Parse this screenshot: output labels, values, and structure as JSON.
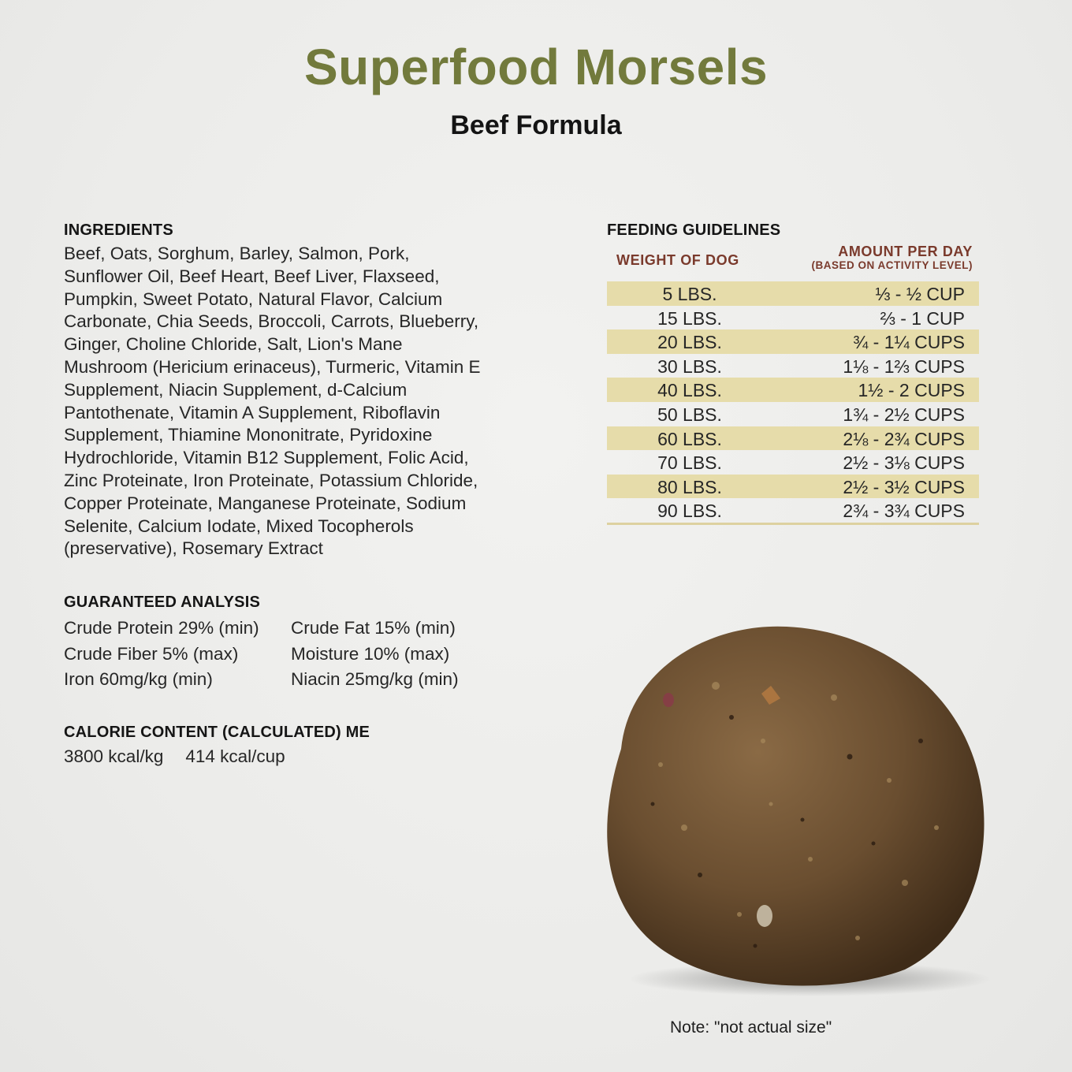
{
  "header": {
    "title": "Superfood Morsels",
    "subtitle": "Beef Formula"
  },
  "ingredients": {
    "heading": "INGREDIENTS",
    "lines": [
      "Beef, Oats, Sorghum, Barley, Salmon, Pork,",
      "Sunflower Oil, Beef Heart, Beef Liver, Flaxseed,",
      "Pumpkin, Sweet Potato, Natural Flavor, Calcium",
      "Carbonate, Chia Seeds, Broccoli, Carrots, Blueberry,",
      "Ginger, Choline Chloride, Salt, Lion's Mane",
      "Mushroom (Hericium erinaceus), Turmeric, Vitamin E",
      "Supplement, Niacin Supplement, d-Calcium",
      "Pantothenate, Vitamin A Supplement, Riboflavin",
      "Supplement, Thiamine Mononitrate, Pyridoxine",
      "Hydrochloride, Vitamin B12 Supplement, Folic Acid,",
      "Zinc Proteinate, Iron Proteinate, Potassium Chloride,",
      "Copper Proteinate, Manganese Proteinate, Sodium",
      "Selenite, Calcium Iodate, Mixed Tocopherols",
      "(preservative), Rosemary Extract"
    ]
  },
  "analysis": {
    "heading": "GUARANTEED ANALYSIS",
    "items": [
      "Crude Protein 29% (min)",
      "Crude Fat 15% (min)",
      "Crude Fiber 5% (max)",
      "Moisture 10% (max)",
      "Iron 60mg/kg (min)",
      "Niacin 25mg/kg (min)"
    ]
  },
  "calorie": {
    "heading": "CALORIE CONTENT (CALCULATED) ME",
    "per_kg": "3800 kcal/kg",
    "per_cup": "414 kcal/cup"
  },
  "feeding": {
    "heading": "FEEDING GUIDELINES",
    "col_weight": "WEIGHT OF DOG",
    "col_amount": "AMOUNT PER DAY",
    "col_amount_note": "(BASED ON ACTIVITY LEVEL)",
    "rows": [
      {
        "weight": "5 LBS.",
        "amount": "⅓ - ½ CUP"
      },
      {
        "weight": "15 LBS.",
        "amount": "⅔ - 1 CUP"
      },
      {
        "weight": "20 LBS.",
        "amount": "¾ - 1¼ CUPS"
      },
      {
        "weight": "30 LBS.",
        "amount": "1⅛ - 1⅔ CUPS"
      },
      {
        "weight": "40 LBS.",
        "amount": "1½ - 2 CUPS"
      },
      {
        "weight": "50 LBS.",
        "amount": "1¾ - 2½ CUPS"
      },
      {
        "weight": "60 LBS.",
        "amount": "2⅛ - 2¾ CUPS"
      },
      {
        "weight": "70 LBS.",
        "amount": "2½ - 3⅛ CUPS"
      },
      {
        "weight": "80 LBS.",
        "amount": "2½ - 3½ CUPS"
      },
      {
        "weight": "90 LBS.",
        "amount": "2¾ - 3¾ CUPS"
      }
    ]
  },
  "note": "Note: \"not actual size\"",
  "colors": {
    "title_green": "#727a3c",
    "header_brown": "#7a3a2c",
    "row_highlight": "#e6dcaa"
  }
}
